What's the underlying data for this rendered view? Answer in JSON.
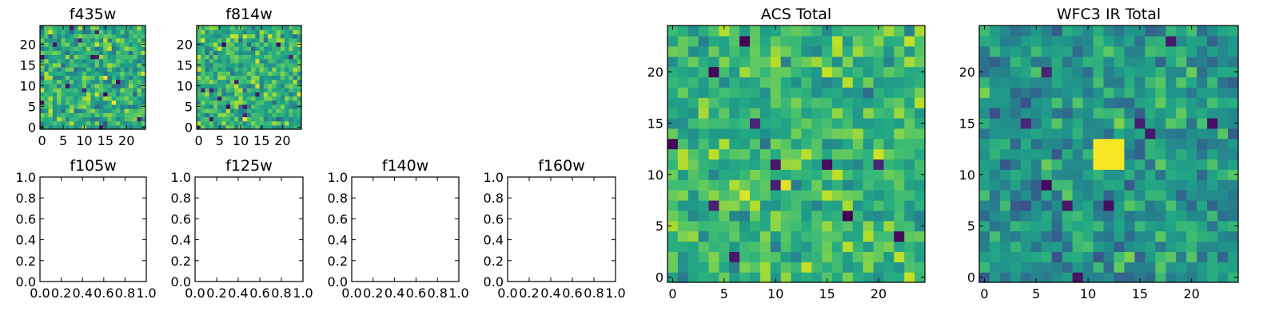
{
  "colormap": "viridis",
  "chart_data": [
    {
      "id": "f435w",
      "type": "heatmap",
      "title": "f435w",
      "xlim": [
        -0.5,
        24.5
      ],
      "ylim": [
        -0.5,
        24.5
      ],
      "xticks": [
        0,
        5,
        10,
        15,
        20
      ],
      "yticks": [
        0,
        5,
        10,
        15,
        20
      ],
      "shape": [
        25,
        25
      ],
      "seed": 11,
      "mean": 0.62,
      "spread": 0.17,
      "outliers": 14,
      "hotspot": null
    },
    {
      "id": "f814w",
      "type": "heatmap",
      "title": "f814w",
      "xlim": [
        -0.5,
        24.5
      ],
      "ylim": [
        -0.5,
        24.5
      ],
      "xticks": [
        0,
        5,
        10,
        15,
        20
      ],
      "yticks": [
        0,
        5,
        10,
        15,
        20
      ],
      "shape": [
        25,
        25
      ],
      "seed": 23,
      "mean": 0.64,
      "spread": 0.16,
      "outliers": 12,
      "hotspot": null
    },
    {
      "id": "acs_total",
      "type": "heatmap",
      "title": "ACS Total",
      "xlim": [
        -0.5,
        24.5
      ],
      "ylim": [
        -0.5,
        24.5
      ],
      "xticks": [
        0,
        5,
        10,
        15,
        20
      ],
      "yticks": [
        0,
        5,
        10,
        15,
        20
      ],
      "shape": [
        25,
        25
      ],
      "seed": 37,
      "mean": 0.66,
      "spread": 0.14,
      "outliers": 12,
      "hotspot": null
    },
    {
      "id": "wfc3_ir_total",
      "type": "heatmap",
      "title": "WFC3 IR Total",
      "xlim": [
        -0.5,
        24.5
      ],
      "ylim": [
        -0.5,
        24.5
      ],
      "xticks": [
        0,
        5,
        10,
        15,
        20
      ],
      "yticks": [
        0,
        5,
        10,
        15,
        20
      ],
      "shape": [
        25,
        25
      ],
      "seed": 53,
      "mean": 0.52,
      "spread": 0.14,
      "outliers": 10,
      "hotspot": {
        "x": [
          11,
          13
        ],
        "y": [
          11,
          13
        ],
        "value": 0.99
      }
    },
    {
      "id": "f105w",
      "type": "empty",
      "title": "f105w",
      "xlim": [
        0,
        1
      ],
      "ylim": [
        0,
        1
      ],
      "xticks": [
        "0.0",
        "0.2",
        "0.4",
        "0.6",
        "0.8",
        "1.0"
      ],
      "yticks": [
        "0.0",
        "0.2",
        "0.4",
        "0.6",
        "0.8",
        "1.0"
      ]
    },
    {
      "id": "f125w",
      "type": "empty",
      "title": "f125w",
      "xlim": [
        0,
        1
      ],
      "ylim": [
        0,
        1
      ],
      "xticks": [
        "0.0",
        "0.2",
        "0.4",
        "0.6",
        "0.8",
        "1.0"
      ],
      "yticks": [
        "0.0",
        "0.2",
        "0.4",
        "0.6",
        "0.8",
        "1.0"
      ]
    },
    {
      "id": "f140w",
      "type": "empty",
      "title": "f140w",
      "xlim": [
        0,
        1
      ],
      "ylim": [
        0,
        1
      ],
      "xticks": [
        "0.0",
        "0.2",
        "0.4",
        "0.6",
        "0.8",
        "1.0"
      ],
      "yticks": [
        "0.0",
        "0.2",
        "0.4",
        "0.6",
        "0.8",
        "1.0"
      ]
    },
    {
      "id": "f160w",
      "type": "empty",
      "title": "f160w",
      "xlim": [
        0,
        1
      ],
      "ylim": [
        0,
        1
      ],
      "xticks": [
        "0.0",
        "0.2",
        "0.4",
        "0.6",
        "0.8",
        "1.0"
      ],
      "yticks": [
        "0.0",
        "0.2",
        "0.4",
        "0.6",
        "0.8",
        "1.0"
      ]
    }
  ]
}
